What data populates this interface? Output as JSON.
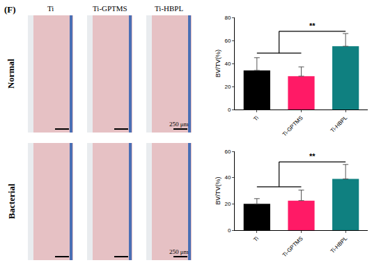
{
  "panel": {
    "label": "(F)",
    "columns": [
      "Ti",
      "Ti-GPTMS",
      "Ti-HBPL"
    ],
    "rows": [
      "Normal",
      "Bacterial"
    ],
    "scale_bar": "250 μm"
  },
  "chart_data": [
    {
      "type": "bar",
      "categories": [
        "Ti",
        "Ti-GPTMS",
        "Ti-HBPL"
      ],
      "values": [
        34,
        29,
        55
      ],
      "error": [
        11,
        8,
        11
      ],
      "colors": [
        "#000000",
        "#ff1a66",
        "#0f8080"
      ],
      "y_label": "BV/TV(%)",
      "ylim": [
        0,
        80
      ],
      "yticks": [
        0,
        20,
        40,
        60,
        80
      ],
      "grid": false,
      "significance": {
        "label": "**",
        "group": [
          "Ti",
          "Ti-GPTMS"
        ],
        "target": "Ti-HBPL",
        "y": 68,
        "group_y": 49
      }
    },
    {
      "type": "bar",
      "categories": [
        "Ti",
        "Ti-GPTMS",
        "Ti-HBPL"
      ],
      "values": [
        20,
        22.5,
        39
      ],
      "error": [
        4,
        8,
        11
      ],
      "colors": [
        "#000000",
        "#ff1a66",
        "#0f8080"
      ],
      "y_label": "BV/TV(%)",
      "ylim": [
        0,
        60
      ],
      "yticks": [
        0,
        20,
        40,
        60
      ],
      "grid": false,
      "significance": {
        "label": "**",
        "group": [
          "Ti",
          "Ti-GPTMS"
        ],
        "target": "Ti-HBPL",
        "y": 52,
        "group_y": 33
      }
    }
  ]
}
